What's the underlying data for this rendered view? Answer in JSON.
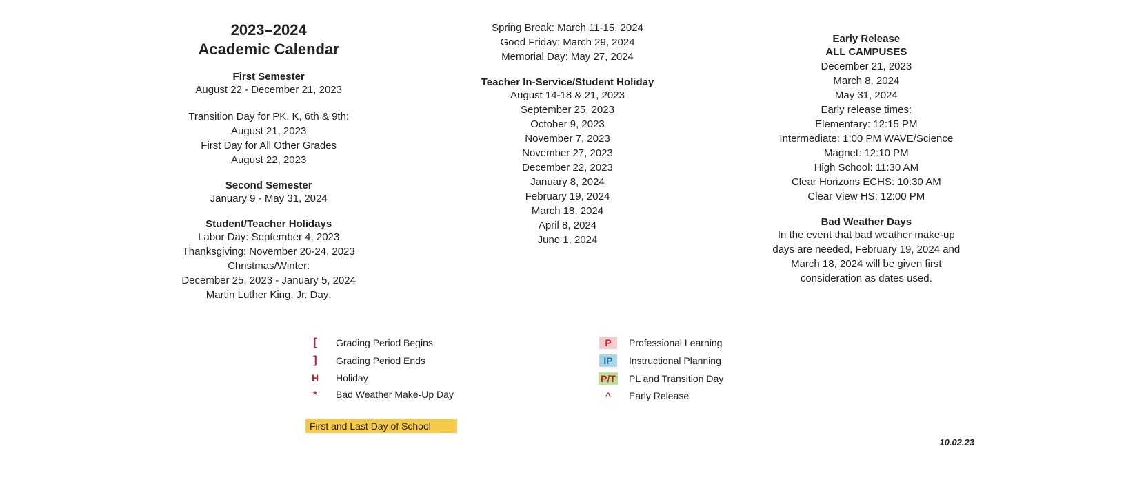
{
  "title": {
    "line1": "2023–2024",
    "line2": "Academic Calendar"
  },
  "col1": [
    {
      "head": "First Semester",
      "lines": [
        "August 22 - December 21, 2023"
      ]
    },
    {
      "lines": [
        "Transition Day for PK, K, 6th & 9th:",
        "August 21, 2023",
        "First Day for All Other Grades",
        "August 22, 2023"
      ]
    },
    {
      "head": "Second Semester",
      "lines": [
        "January 9 - May 31, 2024"
      ]
    },
    {
      "head": "Student/Teacher Holidays",
      "lines": [
        "Labor Day: September 4, 2023",
        "Thanksgiving: November 20-24, 2023",
        "Christmas/Winter:",
        "December 25, 2023 - January 5, 2024",
        "Martin Luther King, Jr. Day:"
      ]
    }
  ],
  "col2": [
    {
      "lines": [
        "Spring Break: March 11-15, 2024",
        "Good Friday: March 29, 2024",
        "Memorial Day: May 27, 2024"
      ]
    },
    {
      "head": "Teacher In-Service/Student Holiday",
      "lines": [
        "August 14-18 & 21, 2023",
        "September 25, 2023",
        "October 9, 2023",
        "November 7, 2023",
        "November 27, 2023",
        "December 22, 2023",
        "January 8, 2024",
        "February 19, 2024",
        "March 18, 2024",
        "April 8, 2024",
        "June 1, 2024"
      ]
    }
  ],
  "col3": [
    {
      "head": "Early Release",
      "head2": "ALL CAMPUSES",
      "lines": [
        "December 21, 2023",
        "March 8, 2024",
        "May 31, 2024",
        "Early release times:",
        "Elementary: 12:15 PM",
        "Intermediate: 1:00 PM WAVE/Science",
        "Magnet: 12:10 PM",
        "High School: 11:30 AM",
        "Clear Horizons ECHS: 10:30 AM",
        "Clear View HS: 12:00 PM"
      ]
    },
    {
      "head": "Bad Weather Days",
      "lines": [
        "In the event that bad weather make-up",
        "days are needed, February 19, 2024 and",
        "March 18, 2024 will be given first",
        "consideration as dates used."
      ]
    }
  ],
  "legend_left": [
    {
      "sym": "[",
      "cls": "sym-bracket",
      "label": "Grading Period Begins"
    },
    {
      "sym": "]",
      "cls": "sym-bracket",
      "label": "Grading Period Ends"
    },
    {
      "sym": "H",
      "cls": "sym-h",
      "label": "Holiday"
    },
    {
      "sym": "*",
      "cls": "sym-star",
      "label": "Bad Weather Make-Up Day"
    }
  ],
  "legend_right": [
    {
      "sym": "P",
      "bg": "#f6c9cd",
      "fg": "#c0212e",
      "label": "Professional Learning"
    },
    {
      "sym": "IP",
      "bg": "#a7d6e8",
      "fg": "#2c6aa0",
      "label": "Instructional Planning"
    },
    {
      "sym": "P/T",
      "bg": "#bfe29a",
      "fg": "#c0212e",
      "label": "PL and Transition Day"
    },
    {
      "sym": "^",
      "cls": "sym-caret",
      "label": "Early Release"
    }
  ],
  "first_last": {
    "text": "First and Last Day of School",
    "bg": "#f7c948"
  },
  "footer_date": "10.02.23",
  "colors": {
    "accent_red": "#c0212e",
    "text": "#222222"
  }
}
